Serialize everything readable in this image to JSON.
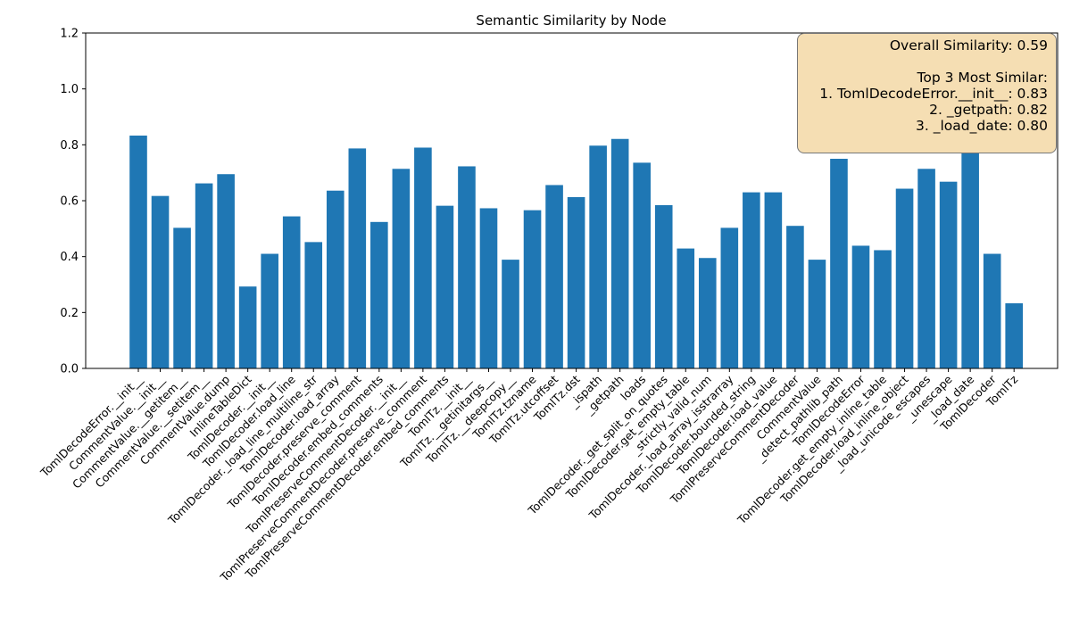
{
  "chart_data": {
    "type": "bar",
    "title": "Semantic Similarity by Node",
    "xlabel": "",
    "ylabel": "",
    "ylim": [
      0,
      1.2
    ],
    "yticks": [
      "0.0",
      "0.2",
      "0.4",
      "0.6",
      "0.8",
      "1.0",
      "1.2"
    ],
    "bar_color": "#1f77b4",
    "grid": false,
    "categories": [
      "TomlDecodeError.__init__",
      "CommentValue.__init__",
      "CommentValue.__getitem__",
      "CommentValue.__setitem__",
      "CommentValue.dump",
      "InlineTableDict",
      "TomlDecoder.__init__",
      "TomlDecoder.load_line",
      "TomlDecoder._load_line_multiline_str",
      "TomlDecoder.load_array",
      "TomlDecoder.preserve_comment",
      "TomlDecoder.embed_comments",
      "TomlPreserveCommentDecoder.__init__",
      "TomlPreserveCommentDecoder.preserve_comment",
      "TomlPreserveCommentDecoder.embed_comments",
      "TomlTz.__init__",
      "TomlTz.__getinitargs__",
      "TomlTz.__deepcopy__",
      "TomlTz.tzname",
      "TomlTz.utcoffset",
      "TomlTz.dst",
      "_ispath",
      "_getpath",
      "loads",
      "TomlDecoder._get_split_on_quotes",
      "TomlDecoder.get_empty_table",
      "_strictly_valid_num",
      "TomlDecoder._load_array_isstrarray",
      "TomlDecoder.bounded_string",
      "TomlDecoder.load_value",
      "TomlPreserveCommentDecoder",
      "CommentValue",
      "_detect_pathlib_path",
      "TomlDecodeError",
      "TomlDecoder.get_empty_inline_table",
      "TomlDecoder.load_inline_object",
      "_load_unicode_escapes",
      "_unescape",
      "_load_date",
      "TomlDecoder",
      "TomlTz"
    ],
    "values": [
      0.833,
      0.617,
      0.503,
      0.662,
      0.695,
      0.293,
      0.41,
      0.544,
      0.452,
      0.636,
      0.787,
      0.524,
      0.714,
      0.79,
      0.582,
      0.723,
      0.573,
      0.389,
      0.566,
      0.656,
      0.613,
      0.797,
      0.821,
      0.736,
      0.584,
      0.429,
      0.395,
      0.503,
      0.63,
      0.63,
      0.51,
      0.389,
      0.75,
      0.439,
      0.423,
      0.643,
      0.714,
      0.668,
      0.797,
      0.41,
      0.233
    ],
    "annotation": {
      "overall": "Overall Similarity: 0.59",
      "top_header": "Top 3 Most Similar:",
      "top": [
        "1. TomlDecodeError.__init__: 0.83",
        "2. _getpath: 0.82",
        "3. _load_date: 0.80"
      ]
    },
    "annotation_placement": "top-right"
  }
}
